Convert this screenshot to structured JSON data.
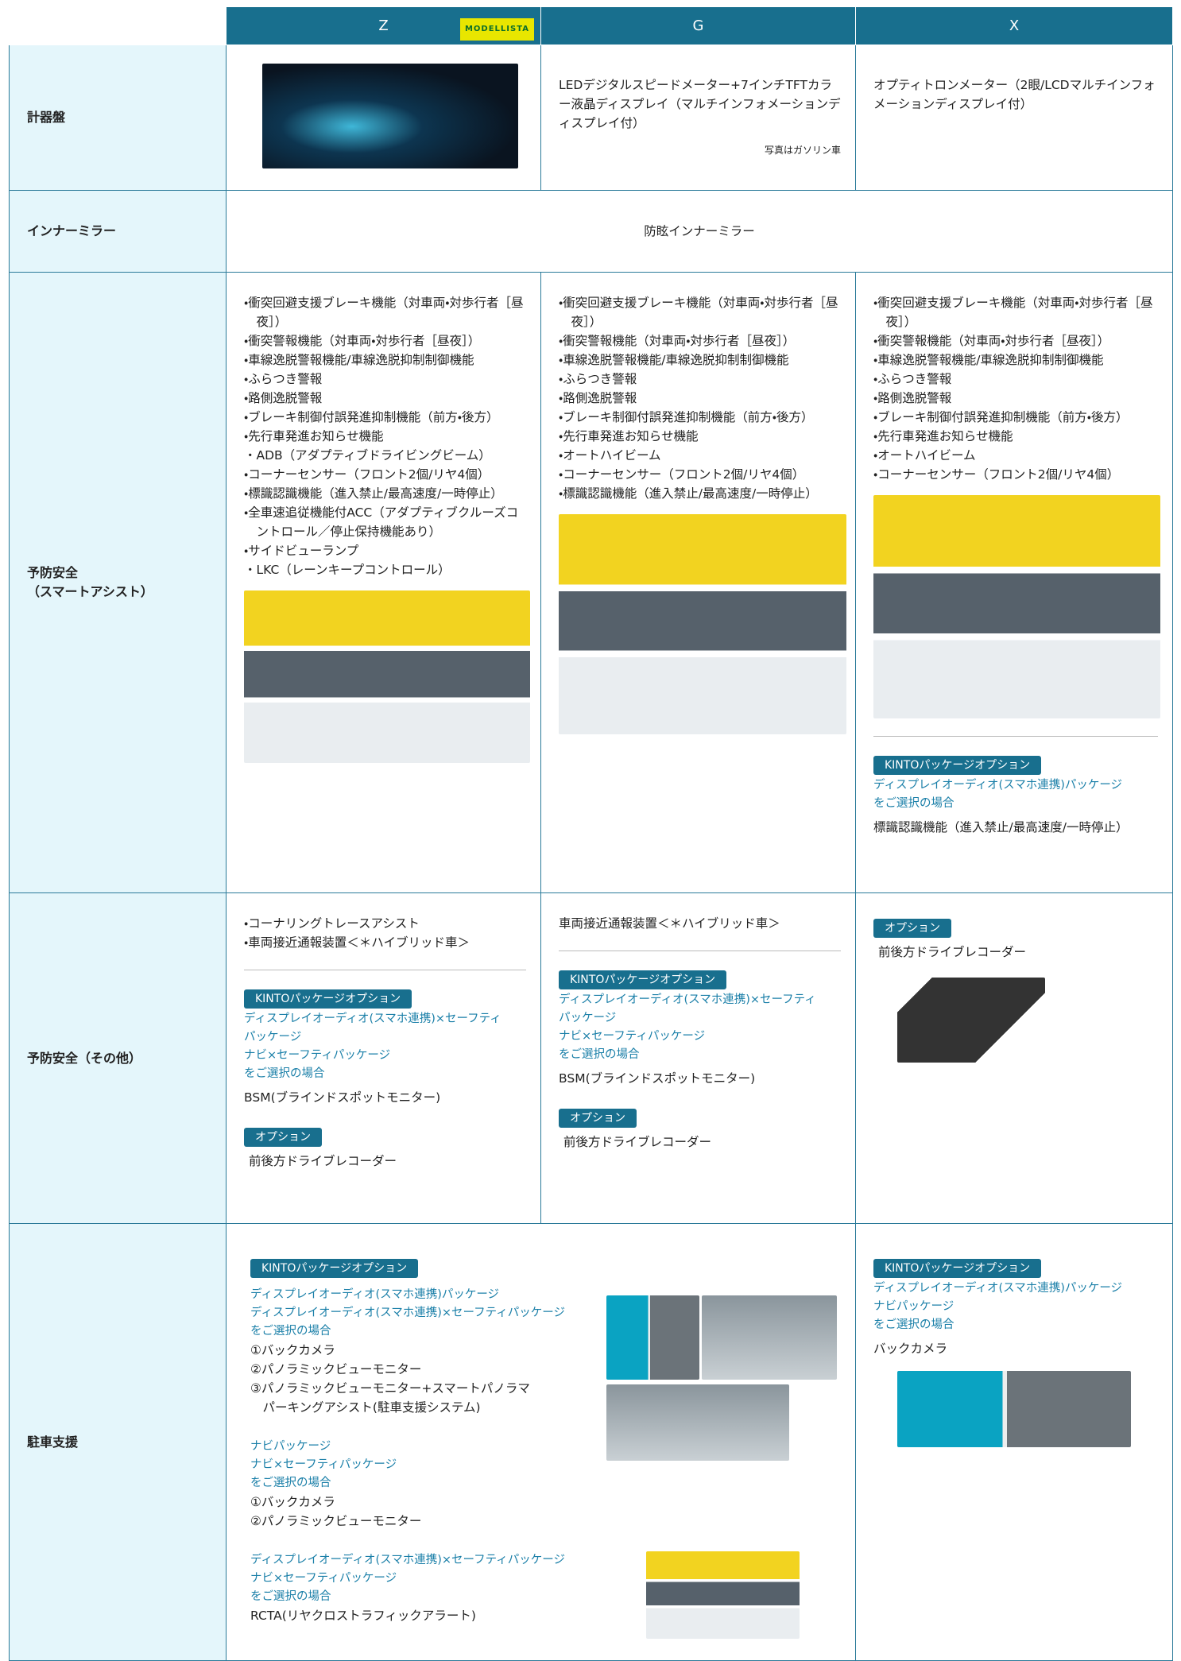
{
  "header": {
    "columns": [
      "Z",
      "G",
      "X"
    ],
    "badge": "MODELLISTA"
  },
  "rows": [
    {
      "label": [
        "計器盤"
      ],
      "cells": [
        {},
        {
          "text": "LEDデジタルスピードメーター+7インチTFTカラー液晶ディスプレイ（マルチインフォメーションディスプレイ付）",
          "note": "写真はガソリン車"
        },
        {
          "text": "オプティトロンメーター（2眼/LCDマルチインフォメーションディスプレイ付）"
        }
      ]
    },
    {
      "label": [
        "インナーミラー"
      ],
      "merged": "防眩インナーミラー"
    },
    {
      "label": [
        "予防安全",
        "（スマートアシスト）"
      ],
      "cells": [
        {
          "items": [
            "・衝突回避支援ブレーキ機能（対車両・対歩行者［昼夜］）",
            "・衝突警報機能（対車両・対歩行者［昼夜］）",
            "・車線逸脱警報機能/車線逸脱抑制制御機能",
            "・ふらつき警報",
            "・路側逸脱警報",
            "・ブレーキ制御付誤発進抑制機能（前方・後方）",
            "・先行車発進お知らせ機能",
            "・ADB（アダプティブドライビングビーム）",
            "・コーナーセンサー（フロント2個/リヤ4個）",
            "・標識認識機能（進入禁止/最高速度/一時停止）",
            "・全車速追従機能付ACC（アダプティブクルーズコントロール／停止保持機能あり）",
            "・サイドビューランプ",
            "・LKC（レーンキープコントロール）"
          ]
        },
        {
          "items": [
            "・衝突回避支援ブレーキ機能（対車両・対歩行者［昼夜］）",
            "・衝突警報機能（対車両・対歩行者［昼夜］）",
            "・車線逸脱警報機能/車線逸脱抑制制御機能",
            "・ふらつき警報",
            "・路側逸脱警報",
            "・ブレーキ制御付誤発進抑制機能（前方・後方）",
            "・先行車発進お知らせ機能",
            "・オートハイビーム",
            "・コーナーセンサー（フロント2個/リヤ4個）",
            "・標識認識機能（進入禁止/最高速度/一時停止）"
          ]
        },
        {
          "items": [
            "・衝突回避支援ブレーキ機能（対車両・対歩行者［昼夜］）",
            "・衝突警報機能（対車両・対歩行者［昼夜］）",
            "・車線逸脱警報機能/車線逸脱抑制制御機能",
            "・ふらつき警報",
            "・路側逸脱警報",
            "・ブレーキ制御付誤発進抑制機能（前方・後方）",
            "・先行車発進お知らせ機能",
            "・オートハイビーム",
            "・コーナーセンサー（フロント2個/リヤ4個）"
          ],
          "kinto": "KINTOパッケージオプション",
          "conditions": [
            "ディスプレイオーディオ(スマホ連携)パッケージ",
            "をご選択の場合"
          ],
          "features": [
            "標識認識機能（進入禁止/最高速度/一時停止）"
          ]
        }
      ]
    },
    {
      "label": [
        "予防安全（その他）"
      ],
      "cells": [
        {
          "items": [
            "・コーナリングトレースアシスト",
            "・車両接近通報装置＜＊ハイブリッド車＞"
          ],
          "kinto": "KINTOパッケージオプション",
          "conditions": [
            "ディスプレイオーディオ(スマホ連携)×セーフティ",
            "パッケージ",
            "ナビ×セーフティパッケージ",
            "をご選択の場合"
          ],
          "features": [
            "BSM(ブラインドスポットモニター)"
          ],
          "option": "オプション",
          "option_feature": "前後方ドライブレコーダー"
        },
        {
          "items": [
            "車両接近通報装置＜＊ハイブリッド車＞"
          ],
          "kinto": "KINTOパッケージオプション",
          "conditions": [
            "ディスプレイオーディオ(スマホ連携)×セーフティ",
            "パッケージ",
            "ナビ×セーフティパッケージ",
            "をご選択の場合"
          ],
          "features": [
            "BSM(ブラインドスポットモニター)"
          ],
          "option": "オプション",
          "option_feature": "前後方ドライブレコーダー"
        },
        {
          "option": "オプション",
          "option_feature": "前後方ドライブレコーダー"
        }
      ]
    },
    {
      "label": [
        "駐車支援"
      ],
      "wide": {
        "kinto": "KINTOパッケージオプション",
        "groups": [
          {
            "conditions": [
              "ディスプレイオーディオ(スマホ連携)パッケージ",
              "ディスプレイオーディオ(スマホ連携)×セーフティパッケージ",
              "をご選択の場合"
            ],
            "features": [
              "①バックカメラ",
              "②パノラミックビューモニター",
              "③パノラミックビューモニター+スマートパノラマ",
              "　パーキングアシスト(駐車支援システム)"
            ]
          },
          {
            "conditions": [
              "ナビパッケージ",
              "ナビ×セーフティパッケージ",
              "をご選択の場合"
            ],
            "features": [
              "①バックカメラ",
              "②パノラミックビューモニター"
            ]
          },
          {
            "conditions": [
              "ディスプレイオーディオ(スマホ連携)×セーフティパッケージ",
              "ナビ×セーフティパッケージ",
              "をご選択の場合"
            ],
            "features": [
              "RCTA(リヤクロストラフィックアラート)"
            ]
          }
        ]
      },
      "cells": [
        {
          "kinto": "KINTOパッケージオプション",
          "conditions": [
            "ディスプレイオーディオ(スマホ連携)パッケージ",
            "ナビパッケージ",
            "をご選択の場合"
          ],
          "features": [
            "バックカメラ"
          ]
        }
      ]
    }
  ]
}
